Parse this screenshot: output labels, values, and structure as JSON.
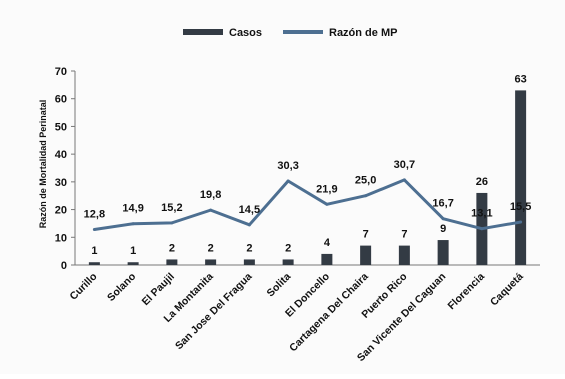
{
  "chart_data": {
    "type": "bar",
    "categories": [
      "Curillo",
      "Solano",
      "El Paujil",
      "La Montanita",
      "San Jose Del Fragua",
      "Solita",
      "El Doncello",
      "Cartagena Del Chaira",
      "Puerto Rico",
      "San Vicente Del Caguan",
      "Florencia",
      "Caquetá"
    ],
    "series": [
      {
        "name": "Casos",
        "type": "bar",
        "values": [
          1,
          1,
          2,
          2,
          2,
          2,
          4,
          7,
          7,
          9,
          26,
          63
        ],
        "labels": [
          "1",
          "1",
          "2",
          "2",
          "2",
          "2",
          "4",
          "7",
          "7",
          "9",
          "26",
          "63"
        ]
      },
      {
        "name": "Razón de MP",
        "type": "line",
        "values": [
          12.8,
          14.9,
          15.2,
          19.8,
          14.5,
          30.3,
          21.9,
          25.0,
          30.7,
          16.7,
          13.1,
          15.5
        ],
        "labels": [
          "12,8",
          "14,9",
          "15,2",
          "19,8",
          "14,5",
          "30,3",
          "21,9",
          "25,0",
          "30,7",
          "16,7",
          "13,1",
          "15,5"
        ]
      }
    ],
    "title": "",
    "xlabel": "",
    "ylabel": "Razón de Mortalidad Perinatal",
    "ylim": [
      0,
      70
    ],
    "yticks": [
      "0",
      "10",
      "20",
      "30",
      "40",
      "50",
      "60",
      "70"
    ],
    "legend_position": "top-center",
    "grid": false,
    "colors": {
      "bar": "#333b44",
      "line": "#4d6f91",
      "text": "#111111"
    }
  }
}
